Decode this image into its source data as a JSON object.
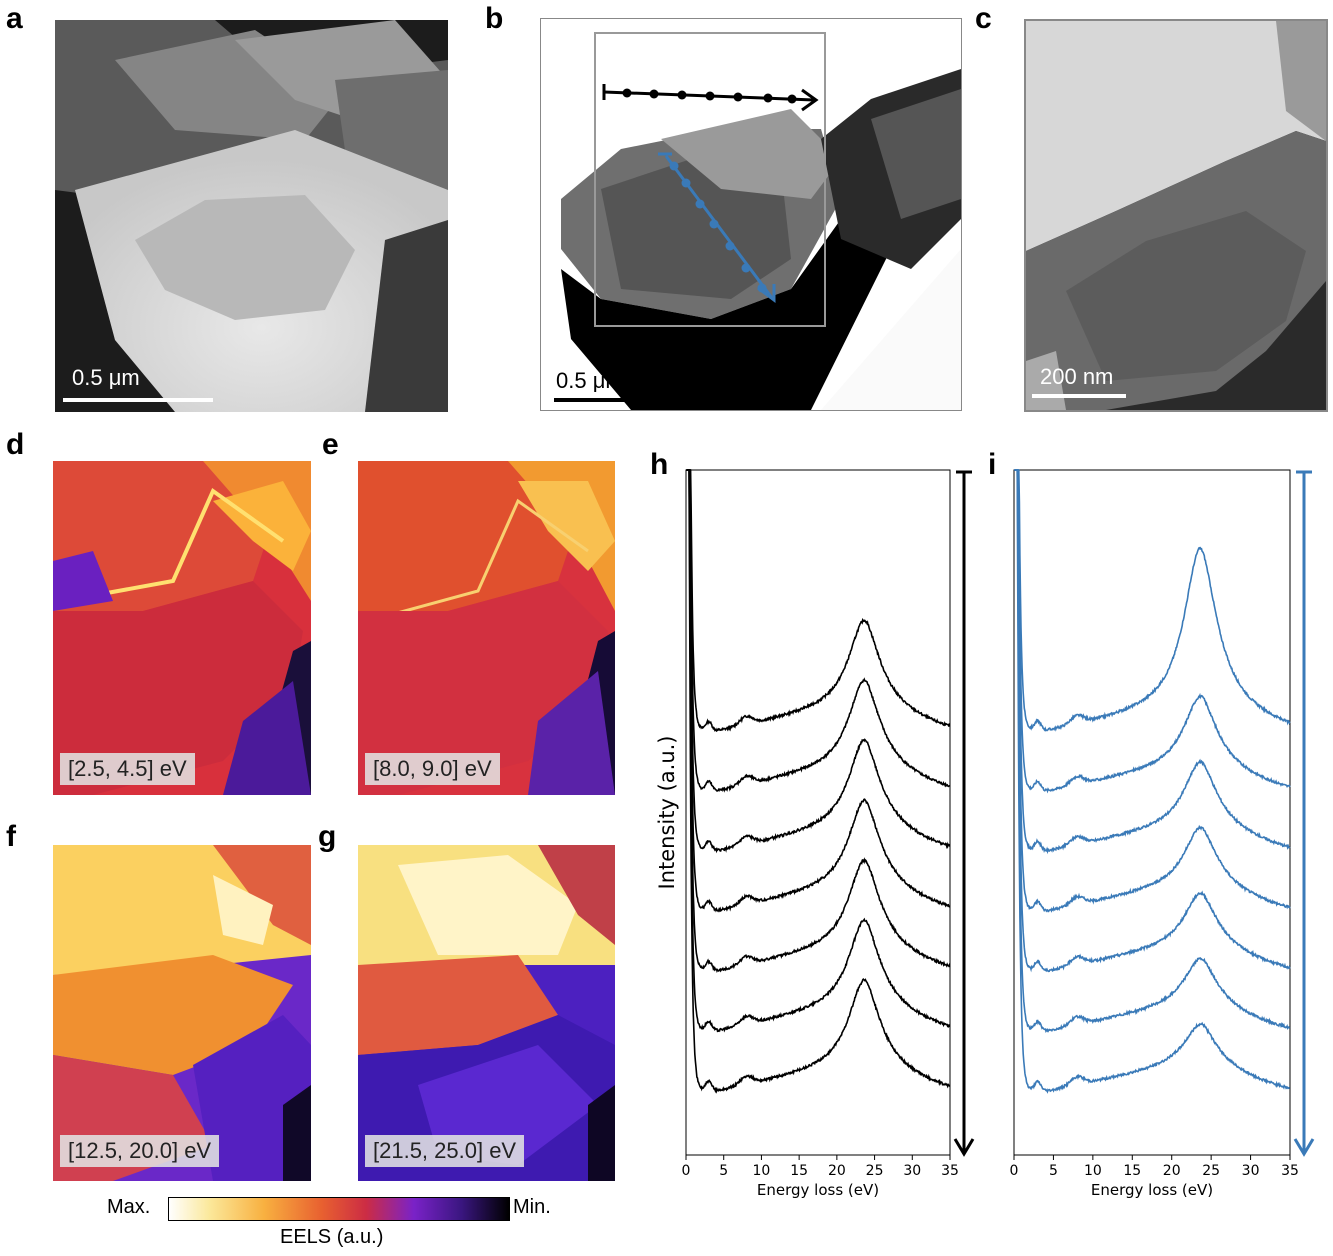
{
  "panels": {
    "a": {
      "label": "a",
      "scalebar": "0.5 μm"
    },
    "b": {
      "label": "b",
      "scalebar": "0.5 μm"
    },
    "c": {
      "label": "c",
      "scalebar": "200 nm"
    },
    "d": {
      "label": "d",
      "range": "[2.5, 4.5] eV"
    },
    "e": {
      "label": "e",
      "range": "[8.0, 9.0] eV"
    },
    "f": {
      "label": "f",
      "range": "[12.5, 20.0] eV"
    },
    "g": {
      "label": "g",
      "range": "[21.5, 25.0] eV"
    },
    "h": {
      "label": "h"
    },
    "i": {
      "label": "i"
    }
  },
  "colorbar": {
    "max_label": "Max.",
    "min_label": "Min.",
    "title": "EELS (a.u.)"
  },
  "colors": {
    "black_series": "#000000",
    "blue_series": "#3a7ab8"
  },
  "chart_data": [
    {
      "type": "line",
      "panel": "h",
      "xlabel": "Energy loss (eV)",
      "ylabel": "Intensity (a.u.)",
      "xlim": [
        0,
        35
      ],
      "xticks": [
        0,
        5,
        10,
        15,
        20,
        25,
        30,
        35
      ],
      "yticks": [],
      "n_spectra": 7,
      "vertical_offsets_ui": [
        6,
        5,
        4,
        3,
        2,
        1,
        0
      ],
      "peak_energy_eV": 23.5,
      "color": "#000000"
    },
    {
      "type": "line",
      "panel": "i",
      "xlabel": "Energy loss (eV)",
      "xlim": [
        0,
        35
      ],
      "xticks": [
        0,
        5,
        10,
        15,
        20,
        25,
        30,
        35
      ],
      "yticks": [],
      "n_spectra": 7,
      "vertical_offsets_ui": [
        6,
        5,
        4,
        3,
        2,
        1,
        0
      ],
      "peak_energy_eV": 23.5,
      "color": "#3a7ab8"
    }
  ]
}
